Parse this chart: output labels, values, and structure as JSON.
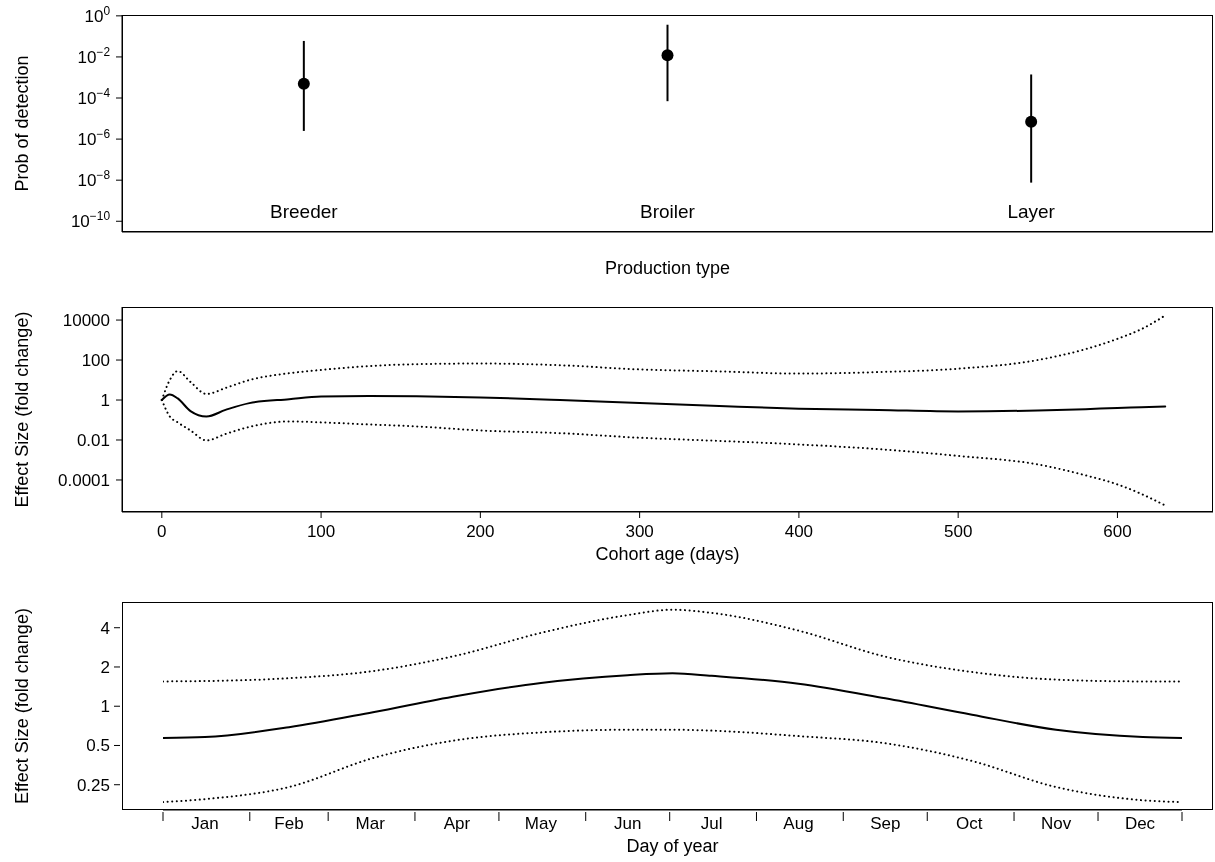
{
  "chart_data": [
    {
      "type": "scatter",
      "xlabel": "Production type",
      "ylabel": "Prob of detection",
      "categories": [
        "Breeder",
        "Broiler",
        "Layer"
      ],
      "values": [
        0.0005,
        0.012,
        7e-06
      ],
      "errors": [
        [
          2.5e-06,
          0.06
        ],
        [
          7e-05,
          0.37
        ],
        [
          7.6e-09,
          0.0014
        ]
      ],
      "color": "#000000",
      "marker": "circle",
      "log": "y",
      "ylim": [
        3e-11,
        1.1
      ],
      "yticks": [
        {
          "value": 1e-10,
          "label": "10$^{−10}$"
        },
        {
          "value": 1e-08,
          "label": "10$^{−8}$"
        },
        {
          "value": 1e-06,
          "label": "10$^{−6}$"
        },
        {
          "value": 0.0001,
          "label": "10$^{−4}$"
        },
        {
          "value": 0.01,
          "label": "10$^{−2}$"
        },
        {
          "value": 1,
          "label": "10$^{0}$"
        }
      ]
    },
    {
      "type": "line",
      "xlabel": "Cohort age (days)",
      "ylabel": "Effect Size (fold change)",
      "log": "y",
      "xlim": [
        -25,
        660
      ],
      "xticks": [
        0,
        100,
        200,
        300,
        400,
        500,
        600
      ],
      "ylim": [
        2.5e-06,
        45000
      ],
      "yticks": [
        0.0001,
        0.01,
        1,
        100,
        10000
      ],
      "marker": "none",
      "x": [
        0,
        5,
        10,
        18,
        28,
        40,
        55,
        80,
        100,
        130,
        160,
        200,
        250,
        300,
        350,
        400,
        450,
        500,
        550,
        580,
        600,
        615,
        630
      ],
      "series": [
        {
          "color": "#000000",
          "line_style": "solid",
          "values": [
            1,
            1.9,
            1.2,
            0.28,
            0.15,
            0.32,
            0.7,
            1.1,
            1.5,
            1.6,
            1.55,
            1.35,
            1.0,
            0.7,
            0.5,
            0.37,
            0.32,
            0.27,
            0.3,
            0.35,
            0.4,
            0.43,
            0.47
          ]
        },
        {
          "color": "#000000",
          "line_style": "dotted",
          "values": [
            1,
            10,
            28,
            8,
            2,
            4,
            10,
            22,
            32,
            50,
            62,
            67,
            55,
            34,
            27,
            21,
            25,
            37,
            100,
            350,
            1150,
            3500,
            17000
          ]
        },
        {
          "color": "#000000",
          "line_style": "dotted",
          "values": [
            1,
            0.15,
            0.076,
            0.03,
            0.0095,
            0.02,
            0.045,
            0.085,
            0.076,
            0.06,
            0.048,
            0.03,
            0.022,
            0.013,
            0.009,
            0.006,
            0.0035,
            0.0016,
            0.0006,
            0.00017,
            6e-05,
            2e-05,
            5.3e-06
          ]
        }
      ]
    },
    {
      "type": "line",
      "xlabel": "Day of year",
      "ylabel": "Effect Size (fold change)",
      "log": "y",
      "xlim": [
        "--01-01",
        "--12-31"
      ],
      "xticks": [
        {
          "value": "--01-01",
          "label": null
        },
        {
          "value": "--01-16",
          "label": "Jan"
        },
        {
          "value": "--02-01",
          "label": null
        },
        {
          "value": "--02-15",
          "label": "Feb"
        },
        {
          "value": "--03-01",
          "label": null
        },
        {
          "value": "--03-16",
          "label": "Mar"
        },
        {
          "value": "--04-01",
          "label": null
        },
        {
          "value": "--04-16",
          "label": "Apr"
        },
        {
          "value": "--05-01",
          "label": null
        },
        {
          "value": "--05-16",
          "label": "May"
        },
        {
          "value": "--06-01",
          "label": null
        },
        {
          "value": "--06-16",
          "label": "Jun"
        },
        {
          "value": "--07-01",
          "label": null
        },
        {
          "value": "--07-16",
          "label": "Jul"
        },
        {
          "value": "--08-01",
          "label": null
        },
        {
          "value": "--08-16",
          "label": "Aug"
        },
        {
          "value": "--09-01",
          "label": null
        },
        {
          "value": "--09-16",
          "label": "Sep"
        },
        {
          "value": "--10-01",
          "label": null
        },
        {
          "value": "--10-16",
          "label": "Oct"
        },
        {
          "value": "--11-01",
          "label": null
        },
        {
          "value": "--11-16",
          "label": "Nov"
        },
        {
          "value": "--12-01",
          "label": null
        },
        {
          "value": "--12-16",
          "label": "Dec"
        },
        {
          "value": "--12-31",
          "label": null
        }
      ],
      "ylim": [
        0.16,
        6.3
      ],
      "yticks": [
        0.25,
        0.5,
        1,
        2,
        4
      ],
      "marker": "none",
      "x": [
        "--01-01",
        "--01-16",
        "--02-15",
        "--03-17",
        "--04-16",
        "--05-16",
        "--06-16",
        "--07-02",
        "--07-16",
        "--08-16",
        "--09-16",
        "--10-17",
        "--11-16",
        "--12-17",
        "--12-31"
      ],
      "series": [
        {
          "color": "#000000",
          "line_style": "solid",
          "values": [
            0.57,
            0.58,
            0.69,
            0.9,
            1.2,
            1.51,
            1.73,
            1.79,
            1.71,
            1.49,
            1.15,
            0.86,
            0.66,
            0.58,
            0.57
          ]
        },
        {
          "color": "#000000",
          "line_style": "dotted",
          "values": [
            1.55,
            1.56,
            1.64,
            1.86,
            2.45,
            3.65,
            5.0,
            5.5,
            5.2,
            3.8,
            2.4,
            1.83,
            1.6,
            1.55,
            1.55
          ]
        },
        {
          "color": "#000000",
          "line_style": "dotted",
          "values": [
            0.184,
            0.194,
            0.24,
            0.4,
            0.55,
            0.63,
            0.66,
            0.66,
            0.65,
            0.59,
            0.52,
            0.38,
            0.24,
            0.19,
            0.184
          ]
        }
      ]
    }
  ]
}
